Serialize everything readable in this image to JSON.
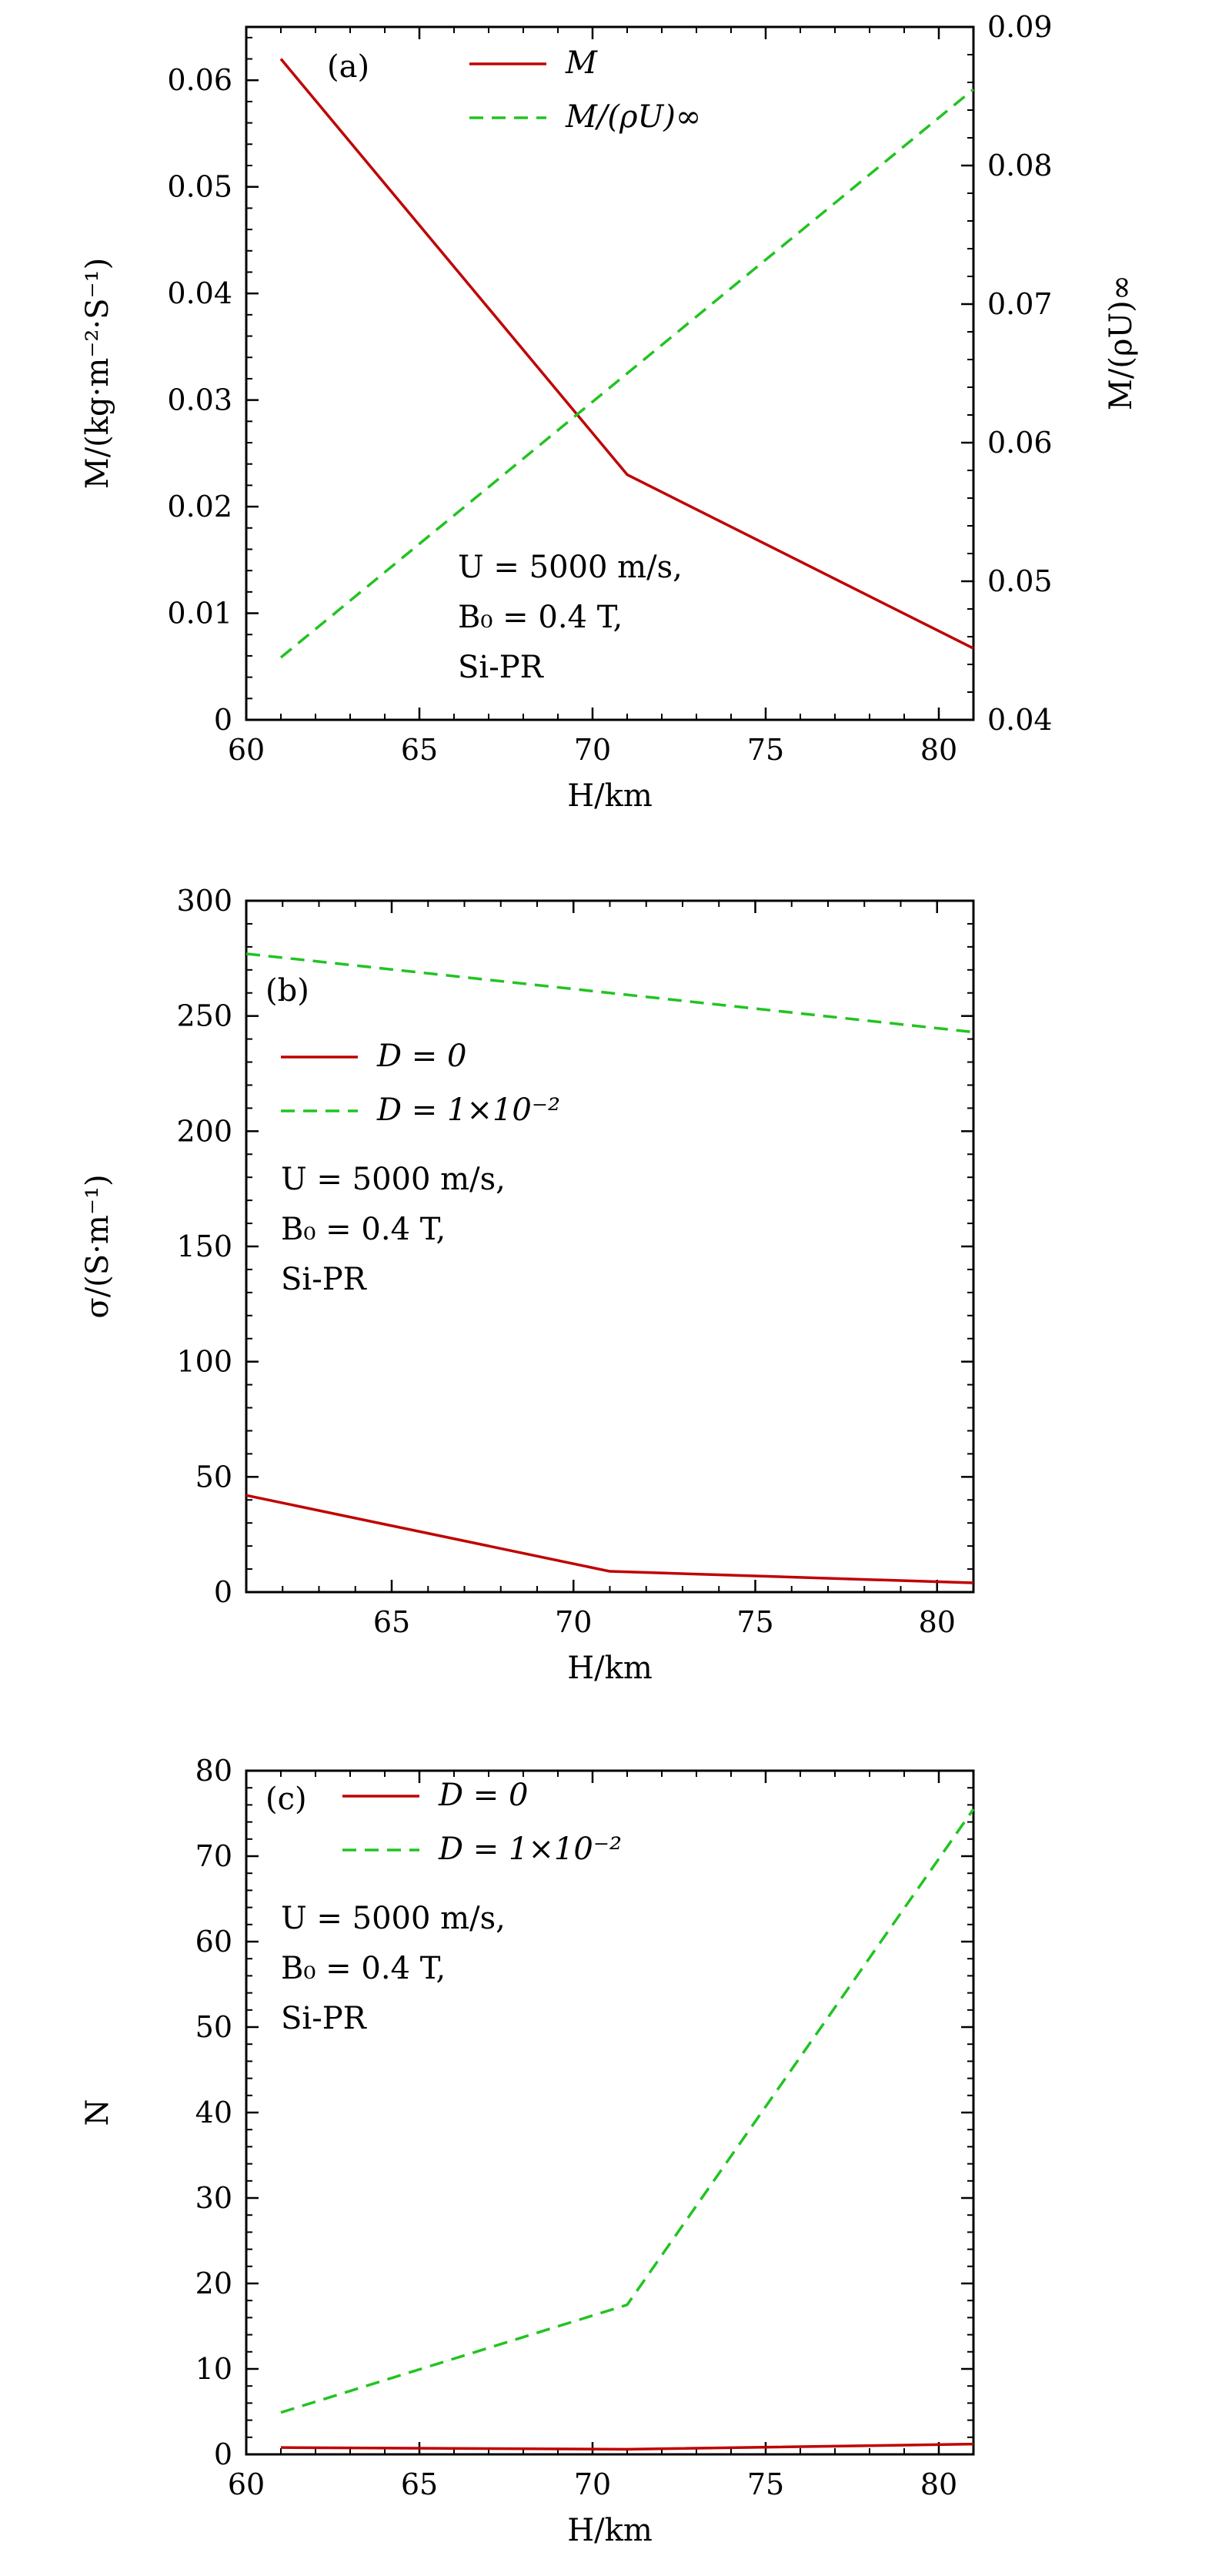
{
  "chart_data": [
    {
      "type": "line",
      "panel_label": "(a)",
      "xlabel": "H/km",
      "ylabel": "M/(kg·m⁻²·S⁻¹)",
      "y2label": "M/(ρU)∞",
      "xlim": [
        60,
        81
      ],
      "ylim": [
        0,
        0.065
      ],
      "y2lim": [
        0.04,
        0.09
      ],
      "xticks": [
        "60",
        "65",
        "70",
        "75",
        "80"
      ],
      "xtick_values": [
        60,
        65,
        70,
        75,
        80
      ],
      "yticks": [
        "0",
        "0.01",
        "0.02",
        "0.03",
        "0.04",
        "0.05",
        "0.06"
      ],
      "ytick_values": [
        0,
        0.01,
        0.02,
        0.03,
        0.04,
        0.05,
        0.06
      ],
      "y2ticks": [
        "0.04",
        "0.05",
        "0.06",
        "0.07",
        "0.08",
        "0.09"
      ],
      "y2tick_values": [
        0.04,
        0.05,
        0.06,
        0.07,
        0.08,
        0.09
      ],
      "series": [
        {
          "name": "M",
          "axis": "left",
          "style": "solid",
          "color": "#c00000",
          "x": [
            61,
            71,
            81
          ],
          "y": [
            0.062,
            0.023,
            0.0067
          ]
        },
        {
          "name": "M/(ρU)∞",
          "axis": "right",
          "style": "dashed",
          "color": "#22c322",
          "x": [
            61,
            81
          ],
          "y": [
            0.0445,
            0.0855
          ]
        }
      ],
      "legend_position": "top-center",
      "annotation": [
        "U = 5000 m/s,",
        "B₀ = 0.4 T,",
        "Si-PR"
      ],
      "grid": false
    },
    {
      "type": "line",
      "panel_label": "(b)",
      "xlabel": "H/km",
      "ylabel": "σ/(S·m⁻¹)",
      "xlim": [
        61,
        81
      ],
      "ylim": [
        0,
        300
      ],
      "xticks": [
        "65",
        "70",
        "75",
        "80"
      ],
      "xtick_values": [
        65,
        70,
        75,
        80
      ],
      "yticks": [
        "0",
        "50",
        "100",
        "150",
        "200",
        "250",
        "300"
      ],
      "ytick_values": [
        0,
        50,
        100,
        150,
        200,
        250,
        300
      ],
      "series": [
        {
          "name": "D = 0",
          "style": "solid",
          "color": "#c00000",
          "x": [
            61,
            71,
            81
          ],
          "y": [
            42,
            9,
            4
          ]
        },
        {
          "name": "D = 1×10⁻²",
          "style": "dashed",
          "color": "#22c322",
          "x": [
            61,
            81
          ],
          "y": [
            277,
            243
          ]
        }
      ],
      "legend_position": "upper-left",
      "annotation": [
        "U = 5000 m/s,",
        "B₀ = 0.4 T,",
        "Si-PR"
      ],
      "grid": false
    },
    {
      "type": "line",
      "panel_label": "(c)",
      "xlabel": "H/km",
      "ylabel": "N",
      "xlim": [
        60,
        81
      ],
      "ylim": [
        0,
        80
      ],
      "xticks": [
        "60",
        "65",
        "70",
        "75",
        "80"
      ],
      "xtick_values": [
        60,
        65,
        70,
        75,
        80
      ],
      "yticks": [
        "0",
        "10",
        "20",
        "30",
        "40",
        "50",
        "60",
        "70",
        "80"
      ],
      "ytick_values": [
        0,
        10,
        20,
        30,
        40,
        50,
        60,
        70,
        80
      ],
      "series": [
        {
          "name": "D = 0",
          "style": "solid",
          "color": "#c00000",
          "x": [
            61,
            71,
            81
          ],
          "y": [
            0.8,
            0.6,
            1.2
          ]
        },
        {
          "name": "D = 1×10⁻²",
          "style": "dashed",
          "color": "#22c322",
          "x": [
            61,
            71,
            81
          ],
          "y": [
            4.9,
            17.5,
            75.5
          ]
        }
      ],
      "legend_position": "top-left",
      "annotation": [
        "U = 5000 m/s,",
        "B₀ = 0.4 T,",
        "Si-PR"
      ],
      "grid": false
    }
  ]
}
